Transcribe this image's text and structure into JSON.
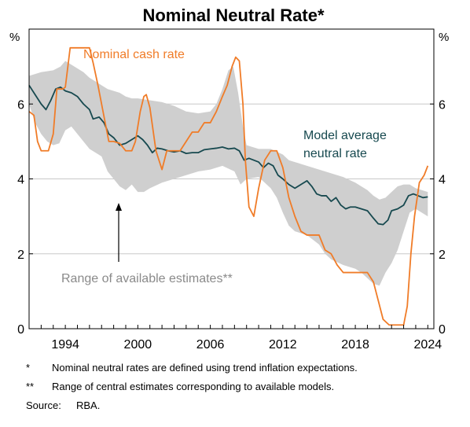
{
  "chart_data": {
    "type": "line",
    "title": "Nominal Neutral Rate*",
    "unit_left": "%",
    "unit_right": "%",
    "x_ticks": [
      "1994",
      "2000",
      "2006",
      "2012",
      "2018",
      "2024"
    ],
    "y_ticks": [
      "0",
      "2",
      "4",
      "6"
    ],
    "xlim": [
      1991,
      2024.5
    ],
    "ylim": [
      0,
      8
    ],
    "grid": true,
    "series": [
      {
        "name": "Nominal cash rate",
        "color": "#f07c28",
        "points": [
          [
            1991.0,
            5.8
          ],
          [
            1991.4,
            5.7
          ],
          [
            1991.7,
            5.0
          ],
          [
            1992.0,
            4.75
          ],
          [
            1992.6,
            4.75
          ],
          [
            1993.0,
            5.2
          ],
          [
            1993.3,
            6.4
          ],
          [
            1993.8,
            6.4
          ],
          [
            1994.0,
            6.45
          ],
          [
            1994.4,
            7.5
          ],
          [
            1995.0,
            7.5
          ],
          [
            1995.5,
            7.5
          ],
          [
            1996.0,
            7.5
          ],
          [
            1996.3,
            7.1
          ],
          [
            1996.7,
            6.5
          ],
          [
            1997.0,
            6.0
          ],
          [
            1997.3,
            5.5
          ],
          [
            1997.6,
            5.0
          ],
          [
            1998.0,
            5.0
          ],
          [
            1998.5,
            4.95
          ],
          [
            1999.0,
            4.75
          ],
          [
            1999.5,
            4.75
          ],
          [
            1999.8,
            5.0
          ],
          [
            2000.2,
            5.8
          ],
          [
            2000.5,
            6.2
          ],
          [
            2000.7,
            6.25
          ],
          [
            2001.0,
            5.9
          ],
          [
            2001.5,
            4.75
          ],
          [
            2002.0,
            4.25
          ],
          [
            2002.4,
            4.75
          ],
          [
            2003.0,
            4.75
          ],
          [
            2003.5,
            4.75
          ],
          [
            2004.0,
            5.0
          ],
          [
            2004.5,
            5.25
          ],
          [
            2005.0,
            5.25
          ],
          [
            2005.5,
            5.5
          ],
          [
            2006.0,
            5.5
          ],
          [
            2006.5,
            5.8
          ],
          [
            2007.0,
            6.2
          ],
          [
            2007.4,
            6.5
          ],
          [
            2007.8,
            7.0
          ],
          [
            2008.1,
            7.25
          ],
          [
            2008.4,
            7.15
          ],
          [
            2008.7,
            6.0
          ],
          [
            2008.9,
            4.5
          ],
          [
            2009.2,
            3.25
          ],
          [
            2009.6,
            3.0
          ],
          [
            2010.0,
            3.75
          ],
          [
            2010.5,
            4.5
          ],
          [
            2011.0,
            4.75
          ],
          [
            2011.5,
            4.75
          ],
          [
            2012.0,
            4.3
          ],
          [
            2012.5,
            3.5
          ],
          [
            2013.0,
            3.0
          ],
          [
            2013.5,
            2.6
          ],
          [
            2014.0,
            2.5
          ],
          [
            2015.0,
            2.5
          ],
          [
            2015.5,
            2.1
          ],
          [
            2016.0,
            2.0
          ],
          [
            2016.5,
            1.7
          ],
          [
            2017.0,
            1.5
          ],
          [
            2018.0,
            1.5
          ],
          [
            2019.0,
            1.5
          ],
          [
            2019.5,
            1.25
          ],
          [
            2019.9,
            0.75
          ],
          [
            2020.3,
            0.25
          ],
          [
            2020.8,
            0.1
          ],
          [
            2021.5,
            0.1
          ],
          [
            2022.0,
            0.1
          ],
          [
            2022.3,
            0.6
          ],
          [
            2022.6,
            2.0
          ],
          [
            2022.9,
            3.0
          ],
          [
            2023.3,
            3.9
          ],
          [
            2023.7,
            4.1
          ],
          [
            2024.0,
            4.35
          ]
        ]
      },
      {
        "name": "Model average neutral rate",
        "color": "#17494f",
        "points": [
          [
            1991.0,
            6.5
          ],
          [
            1991.5,
            6.25
          ],
          [
            1992.0,
            6.0
          ],
          [
            1992.4,
            5.85
          ],
          [
            1992.8,
            6.1
          ],
          [
            1993.2,
            6.4
          ],
          [
            1993.6,
            6.45
          ],
          [
            1994.0,
            6.35
          ],
          [
            1994.5,
            6.3
          ],
          [
            1995.0,
            6.2
          ],
          [
            1995.5,
            6.0
          ],
          [
            1996.0,
            5.85
          ],
          [
            1996.3,
            5.6
          ],
          [
            1996.8,
            5.65
          ],
          [
            1997.2,
            5.5
          ],
          [
            1997.6,
            5.2
          ],
          [
            1998.0,
            5.1
          ],
          [
            1998.5,
            4.9
          ],
          [
            1999.0,
            4.95
          ],
          [
            1999.5,
            5.05
          ],
          [
            2000.0,
            5.15
          ],
          [
            2000.4,
            5.05
          ],
          [
            2000.8,
            4.9
          ],
          [
            2001.2,
            4.7
          ],
          [
            2001.6,
            4.82
          ],
          [
            2002.0,
            4.8
          ],
          [
            2002.5,
            4.75
          ],
          [
            2003.0,
            4.72
          ],
          [
            2003.5,
            4.75
          ],
          [
            2004.0,
            4.68
          ],
          [
            2004.5,
            4.7
          ],
          [
            2005.0,
            4.7
          ],
          [
            2005.5,
            4.78
          ],
          [
            2006.0,
            4.8
          ],
          [
            2006.5,
            4.82
          ],
          [
            2007.0,
            4.85
          ],
          [
            2007.5,
            4.8
          ],
          [
            2008.0,
            4.82
          ],
          [
            2008.4,
            4.75
          ],
          [
            2008.8,
            4.5
          ],
          [
            2009.2,
            4.55
          ],
          [
            2009.6,
            4.5
          ],
          [
            2010.0,
            4.45
          ],
          [
            2010.4,
            4.3
          ],
          [
            2010.8,
            4.42
          ],
          [
            2011.2,
            4.35
          ],
          [
            2011.6,
            4.1
          ],
          [
            2012.0,
            4.0
          ],
          [
            2012.5,
            3.85
          ],
          [
            2013.0,
            3.75
          ],
          [
            2013.5,
            3.85
          ],
          [
            2014.0,
            3.95
          ],
          [
            2014.4,
            3.8
          ],
          [
            2014.8,
            3.6
          ],
          [
            2015.2,
            3.55
          ],
          [
            2015.6,
            3.55
          ],
          [
            2016.0,
            3.4
          ],
          [
            2016.4,
            3.5
          ],
          [
            2016.8,
            3.3
          ],
          [
            2017.2,
            3.2
          ],
          [
            2017.6,
            3.25
          ],
          [
            2018.0,
            3.25
          ],
          [
            2018.5,
            3.2
          ],
          [
            2019.0,
            3.15
          ],
          [
            2019.5,
            2.95
          ],
          [
            2019.9,
            2.8
          ],
          [
            2020.3,
            2.78
          ],
          [
            2020.7,
            2.9
          ],
          [
            2021.0,
            3.15
          ],
          [
            2021.5,
            3.2
          ],
          [
            2022.0,
            3.3
          ],
          [
            2022.4,
            3.55
          ],
          [
            2022.8,
            3.6
          ],
          [
            2023.2,
            3.55
          ],
          [
            2023.6,
            3.5
          ],
          [
            2024.0,
            3.52
          ]
        ]
      }
    ],
    "range_band": {
      "name": "Range of available estimates**",
      "color": "#cfcfcf",
      "upper": [
        [
          1991.0,
          6.75
        ],
        [
          1992.0,
          6.85
        ],
        [
          1993.0,
          6.9
        ],
        [
          1993.6,
          7.0
        ],
        [
          1994.0,
          7.15
        ],
        [
          1994.5,
          7.05
        ],
        [
          1995.0,
          6.95
        ],
        [
          1995.5,
          6.85
        ],
        [
          1996.0,
          6.7
        ],
        [
          1996.5,
          6.6
        ],
        [
          1997.0,
          6.5
        ],
        [
          1997.5,
          6.4
        ],
        [
          1998.0,
          6.35
        ],
        [
          1998.5,
          6.3
        ],
        [
          1999.0,
          6.2
        ],
        [
          1999.5,
          6.15
        ],
        [
          2000.0,
          6.15
        ],
        [
          2001.0,
          6.1
        ],
        [
          2002.0,
          6.05
        ],
        [
          2003.0,
          5.95
        ],
        [
          2004.0,
          5.8
        ],
        [
          2005.0,
          5.75
        ],
        [
          2006.0,
          5.8
        ],
        [
          2006.5,
          6.0
        ],
        [
          2007.0,
          6.4
        ],
        [
          2007.5,
          6.9
        ],
        [
          2007.9,
          7.0
        ],
        [
          2008.3,
          6.3
        ],
        [
          2008.7,
          5.4
        ],
        [
          2009.0,
          4.9
        ],
        [
          2010.0,
          4.8
        ],
        [
          2011.0,
          4.8
        ],
        [
          2012.0,
          4.65
        ],
        [
          2012.5,
          4.5
        ],
        [
          2013.0,
          4.45
        ],
        [
          2013.5,
          4.4
        ],
        [
          2014.0,
          4.35
        ],
        [
          2014.5,
          4.3
        ],
        [
          2015.0,
          4.25
        ],
        [
          2016.0,
          4.15
        ],
        [
          2017.0,
          4.05
        ],
        [
          2018.0,
          3.9
        ],
        [
          2019.0,
          3.7
        ],
        [
          2019.5,
          3.55
        ],
        [
          2020.0,
          3.45
        ],
        [
          2020.5,
          3.5
        ],
        [
          2021.0,
          3.65
        ],
        [
          2021.5,
          3.8
        ],
        [
          2022.0,
          3.85
        ],
        [
          2022.5,
          3.85
        ],
        [
          2023.0,
          3.75
        ],
        [
          2023.5,
          3.7
        ],
        [
          2024.0,
          3.65
        ]
      ],
      "lower": [
        [
          1991.0,
          6.0
        ],
        [
          1991.5,
          5.5
        ],
        [
          1992.0,
          5.2
        ],
        [
          1992.5,
          5.0
        ],
        [
          1993.0,
          4.9
        ],
        [
          1993.5,
          4.95
        ],
        [
          1994.0,
          5.3
        ],
        [
          1994.5,
          5.4
        ],
        [
          1995.0,
          5.2
        ],
        [
          1995.5,
          5.0
        ],
        [
          1996.0,
          4.8
        ],
        [
          1996.5,
          4.7
        ],
        [
          1997.0,
          4.6
        ],
        [
          1997.5,
          4.2
        ],
        [
          1998.0,
          4.0
        ],
        [
          1998.5,
          3.8
        ],
        [
          1999.0,
          3.7
        ],
        [
          1999.5,
          3.85
        ],
        [
          2000.0,
          3.65
        ],
        [
          2000.5,
          3.65
        ],
        [
          2001.0,
          3.75
        ],
        [
          2002.0,
          3.9
        ],
        [
          2003.0,
          4.0
        ],
        [
          2004.0,
          4.1
        ],
        [
          2005.0,
          4.2
        ],
        [
          2006.0,
          4.25
        ],
        [
          2007.0,
          4.35
        ],
        [
          2008.0,
          4.2
        ],
        [
          2008.5,
          3.85
        ],
        [
          2009.0,
          4.0
        ],
        [
          2010.0,
          4.05
        ],
        [
          2011.0,
          3.75
        ],
        [
          2011.5,
          3.5
        ],
        [
          2012.0,
          3.1
        ],
        [
          2012.5,
          2.75
        ],
        [
          2013.0,
          2.6
        ],
        [
          2014.0,
          2.5
        ],
        [
          2015.0,
          2.25
        ],
        [
          2015.5,
          2.0
        ],
        [
          2016.0,
          1.85
        ],
        [
          2017.0,
          1.7
        ],
        [
          2018.0,
          1.6
        ],
        [
          2018.5,
          1.5
        ],
        [
          2019.0,
          1.35
        ],
        [
          2019.5,
          1.2
        ],
        [
          2020.0,
          1.15
        ],
        [
          2020.5,
          1.5
        ],
        [
          2021.0,
          1.75
        ],
        [
          2021.5,
          2.1
        ],
        [
          2022.0,
          2.6
        ],
        [
          2022.5,
          3.1
        ],
        [
          2023.0,
          3.2
        ],
        [
          2023.5,
          3.1
        ],
        [
          2024.0,
          3.0
        ]
      ]
    },
    "annotations": {
      "cash_rate_label": "Nominal cash rate",
      "neutral_label_line1": "Model average",
      "neutral_label_line2": "neutral rate",
      "range_label": "Range of available estimates**"
    }
  },
  "footnotes": {
    "note1_mark": "*",
    "note1_text": "Nominal neutral rates are defined using trend inflation expectations.",
    "note2_mark": "**",
    "note2_text": "Range of central estimates corresponding to available models.",
    "source_label": "Source:",
    "source_text": "RBA."
  }
}
